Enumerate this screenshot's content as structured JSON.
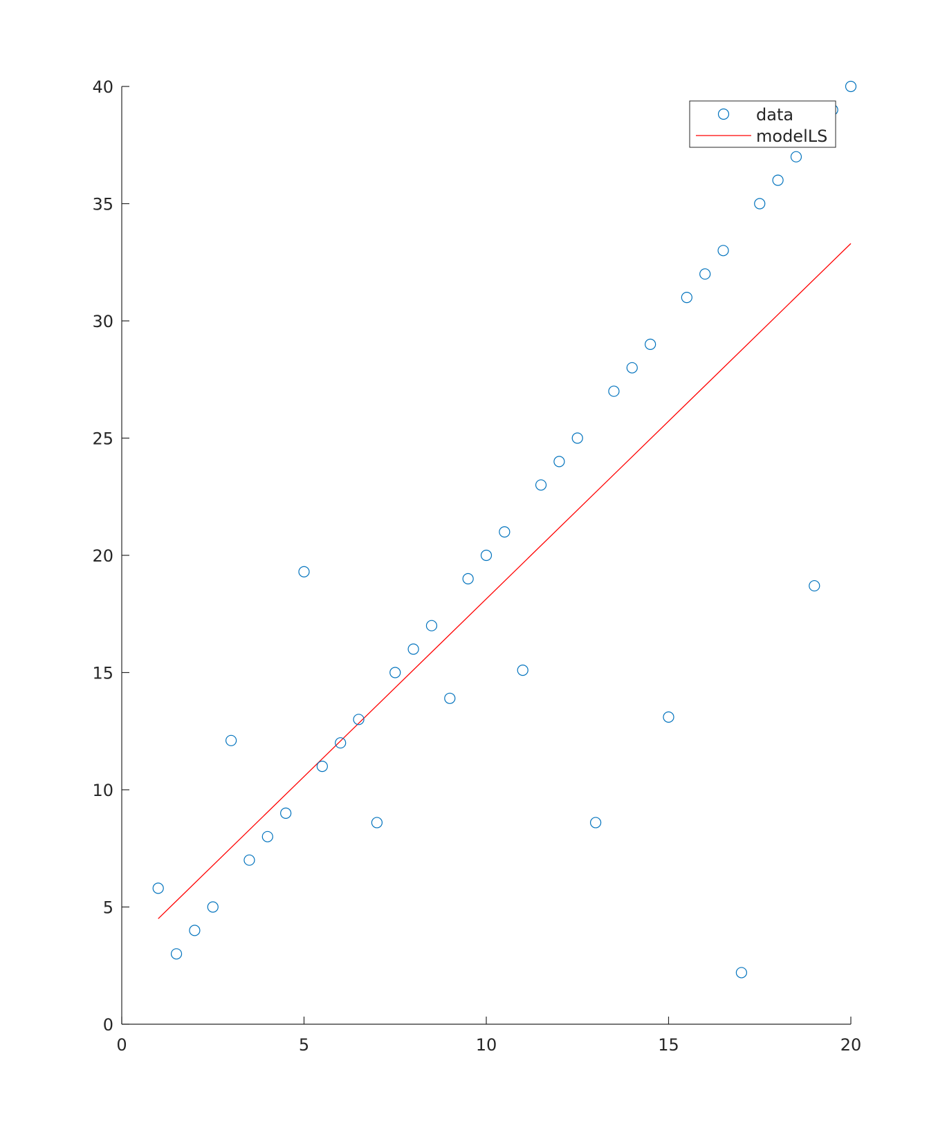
{
  "chart_data": {
    "type": "scatter",
    "title": "",
    "xlabel": "",
    "ylabel": "",
    "xlim": [
      0,
      20
    ],
    "ylim": [
      0,
      40
    ],
    "xticks": [
      0,
      5,
      10,
      15,
      20
    ],
    "yticks": [
      0,
      5,
      10,
      15,
      20,
      25,
      30,
      35,
      40
    ],
    "xtick_labels": [
      "0",
      "5",
      "10",
      "15",
      "20"
    ],
    "ytick_labels": [
      "0",
      "5",
      "10",
      "15",
      "20",
      "25",
      "30",
      "35",
      "40"
    ],
    "grid": false,
    "legend": {
      "position": "top-right",
      "entries": [
        "data",
        "modelLS"
      ]
    },
    "series": [
      {
        "name": "data",
        "kind": "markers",
        "marker": "circle-open",
        "color": "#0072BD",
        "x": [
          1,
          1.5,
          2,
          2.5,
          3,
          3.5,
          4,
          4.5,
          5,
          5.5,
          6,
          6.5,
          7,
          7.5,
          8,
          8.5,
          9,
          9.5,
          10,
          10.5,
          11,
          11.5,
          12,
          12.5,
          13,
          13.5,
          14,
          14.5,
          15,
          15.5,
          16,
          16.5,
          17,
          17.5,
          18,
          18.5,
          19,
          19.5,
          20
        ],
        "y": [
          5.8,
          3,
          4,
          5,
          12.1,
          7,
          8,
          9,
          19.3,
          11,
          12,
          13,
          8.6,
          15,
          16,
          17,
          13.9,
          19,
          20,
          21,
          15.1,
          23,
          24,
          25,
          8.6,
          27,
          28,
          29,
          13.1,
          31,
          32,
          33,
          2.2,
          35,
          36,
          37,
          18.7,
          39,
          40
        ]
      },
      {
        "name": "modelLS",
        "kind": "line",
        "color": "#FF0000",
        "x": [
          1,
          20
        ],
        "y": [
          4.5,
          33.3
        ]
      }
    ]
  }
}
